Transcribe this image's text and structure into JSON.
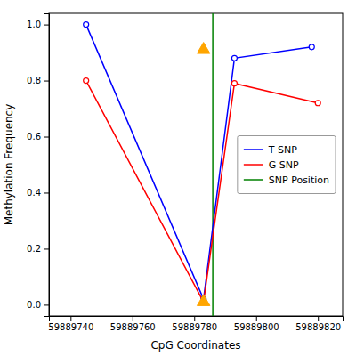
{
  "chart_data": {
    "type": "line",
    "xlabel": "CpG Coordinates",
    "ylabel": "Methylation Frequency",
    "series": [
      {
        "name": "T SNP",
        "color": "blue",
        "marker": "circle",
        "x": [
          59889745,
          59889783,
          59889793,
          59889818
        ],
        "values": [
          1.0,
          0.02,
          0.88,
          0.92
        ]
      },
      {
        "name": "G SNP",
        "color": "red",
        "marker": "circle",
        "x": [
          59889745,
          59889783,
          59889793,
          59889820
        ],
        "values": [
          0.8,
          0.01,
          0.79,
          0.72
        ]
      },
      {
        "name": "SNP Position",
        "type": "vline",
        "color": "green",
        "x": [
          59889786
        ]
      },
      {
        "type": "scatter",
        "marker": "triangle",
        "color": "orange",
        "x": [
          59889783,
          59889783
        ],
        "values": [
          0.91,
          0.01
        ]
      }
    ],
    "xlim": [
      59889733,
      59889828
    ],
    "ylim": [
      -0.04,
      1.04
    ],
    "xticks": [
      59889740,
      59889760,
      59889780,
      59889800,
      59889820
    ],
    "yticks": [
      {
        "value": 0.0,
        "label": "0.0"
      },
      0.2,
      0.4,
      0.6,
      0.8,
      {
        "value": 1.0,
        "label": "1.0"
      }
    ],
    "grid": false,
    "legend": "center right"
  }
}
